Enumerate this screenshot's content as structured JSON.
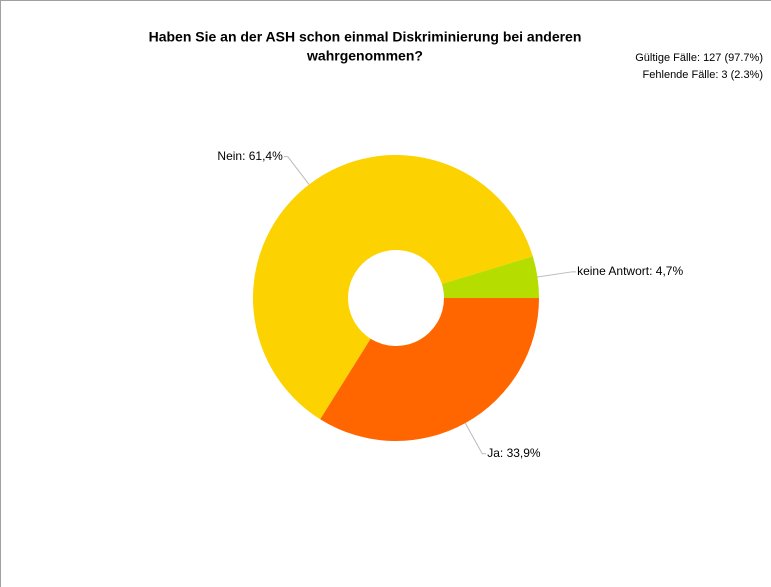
{
  "chart_data": {
    "type": "donut",
    "title": [
      "Haben Sie an der ASH schon einmal Diskriminierung bei anderen",
      "wahrgenommen?"
    ],
    "annotations": [
      "Gültige Fälle: 127 (97.7%)",
      "Fehlende Fälle: 3 (2.3%)"
    ],
    "values": [
      33.9,
      61.4,
      4.7
    ],
    "value_labels": [
      "Ja: 33,9%",
      "Nein: 61,4%",
      "keine Antwort: 4,7%"
    ],
    "colors": [
      "#ff6600",
      "#fcd200",
      "#b5dd00"
    ]
  }
}
